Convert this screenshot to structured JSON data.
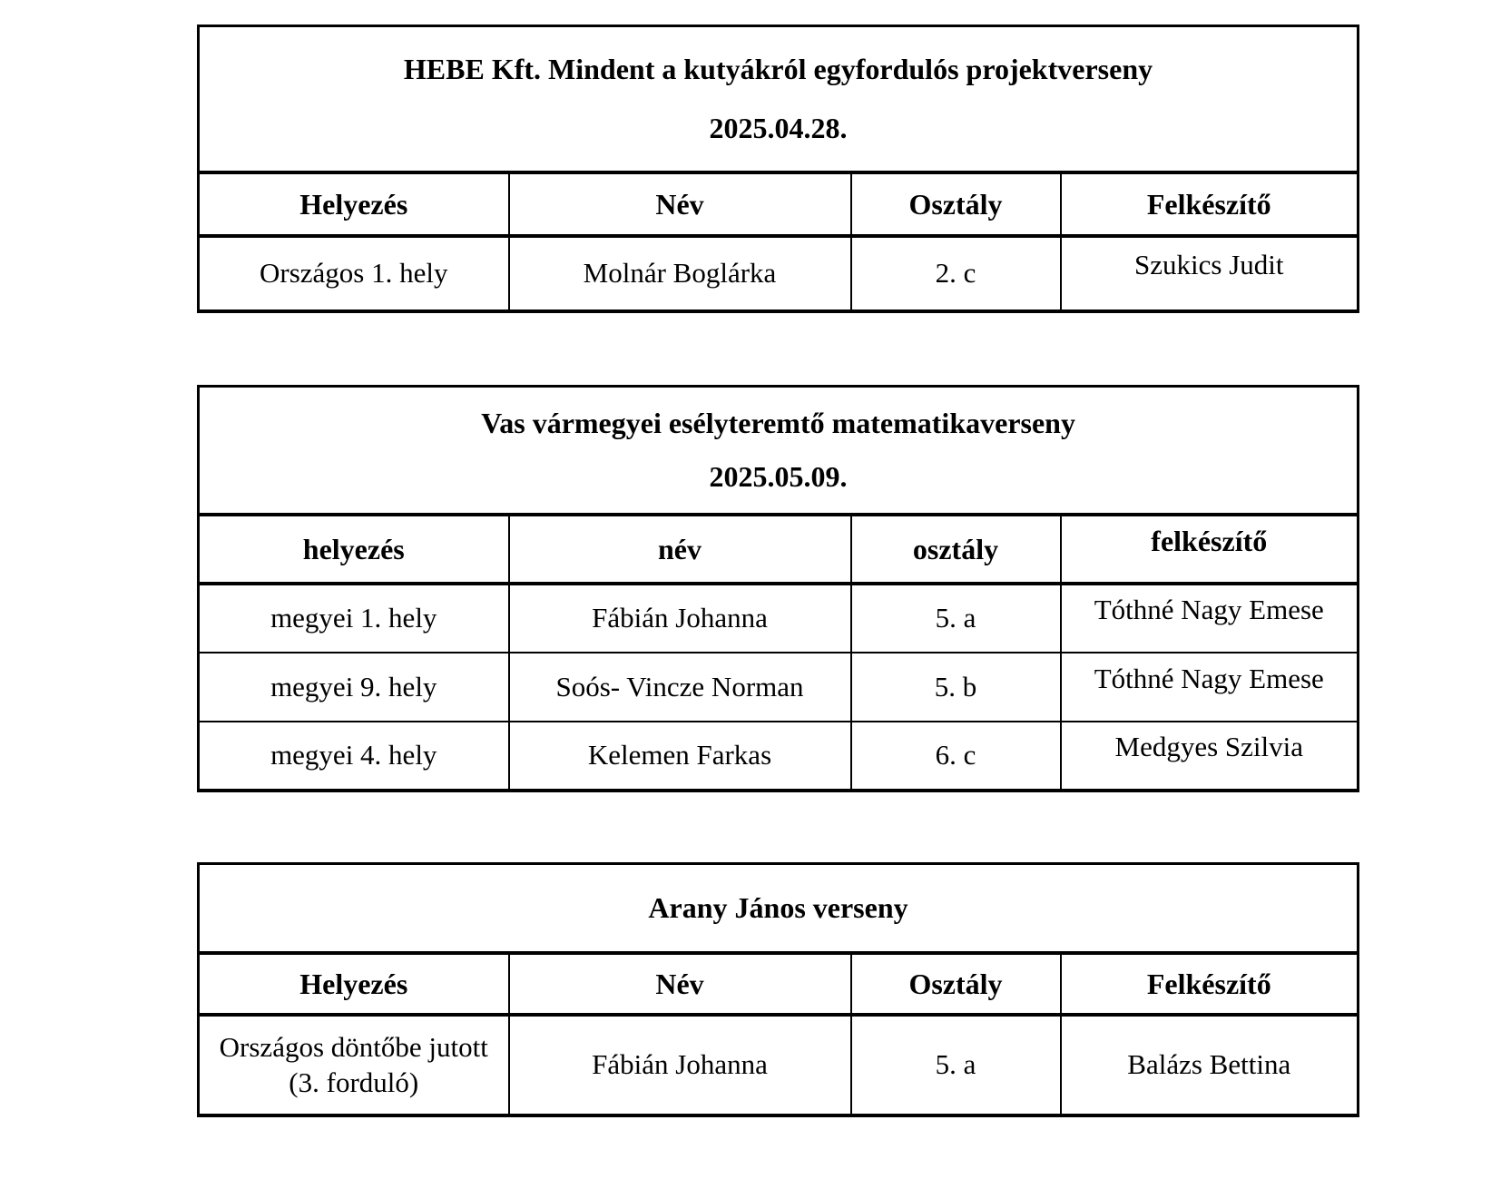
{
  "document": {
    "background": "#ffffff",
    "text_color": "#000000",
    "border_color": "#000000",
    "tables": [
      {
        "title": "HEBE Kft. Mindent a kutyákról egyfordulós projektverseny",
        "date": "2025.04.28.",
        "headers": [
          "Helyezés",
          "Név",
          "Osztály",
          "Felkészítő"
        ],
        "rows": [
          [
            "Országos 1. hely",
            "Molnár Boglárka",
            "2. c",
            "Szukics Judit"
          ]
        ]
      },
      {
        "title": "Vas vármegyei esélyteremtő matematikaverseny",
        "date": "2025.05.09.",
        "headers": [
          "helyezés",
          "név",
          "osztály",
          "felkészítő"
        ],
        "rows": [
          [
            "megyei 1. hely",
            "Fábián Johanna",
            "5. a",
            "Tóthné Nagy Emese"
          ],
          [
            "megyei 9. hely",
            "Soós- Vincze Norman",
            "5. b",
            "Tóthné Nagy Emese"
          ],
          [
            "megyei 4. hely",
            "Kelemen Farkas",
            "6. c",
            "Medgyes Szilvia"
          ]
        ]
      },
      {
        "title": "Arany János verseny",
        "headers": [
          "Helyezés",
          "Név",
          "Osztály",
          "Felkészítő"
        ],
        "rows": [
          [
            "Országos döntőbe jutott\n(3. forduló)",
            "Fábián Johanna",
            "5. a",
            "Balázs Bettina"
          ]
        ]
      }
    ]
  }
}
